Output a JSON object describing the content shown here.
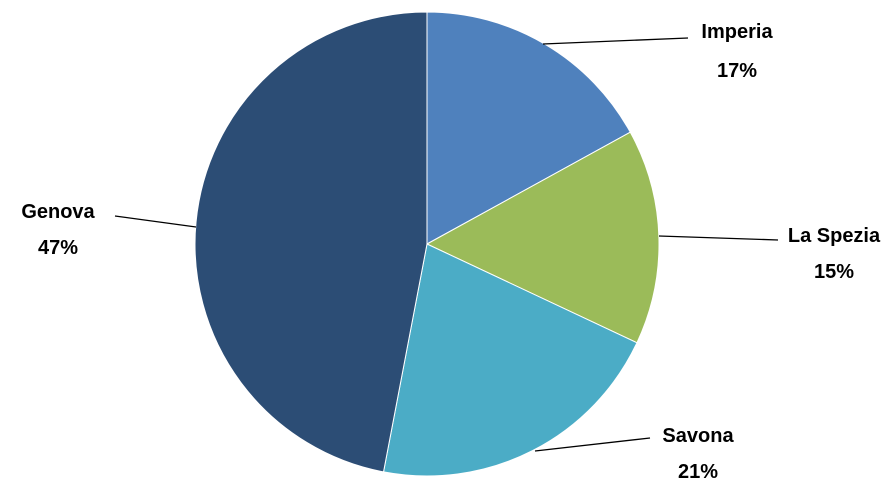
{
  "chart_data": {
    "type": "pie",
    "categories": [
      "Imperia",
      "La Spezia",
      "Savona",
      "Genova"
    ],
    "values": [
      17,
      15,
      21,
      47
    ],
    "value_labels": [
      "17%",
      "15%",
      "21%",
      "47%"
    ],
    "colors": [
      "#4f81bd",
      "#9bbb59",
      "#4bacc6",
      "#2c4d75"
    ],
    "title": "",
    "legend": "none",
    "start_angle": "top",
    "direction": "clockwise"
  }
}
